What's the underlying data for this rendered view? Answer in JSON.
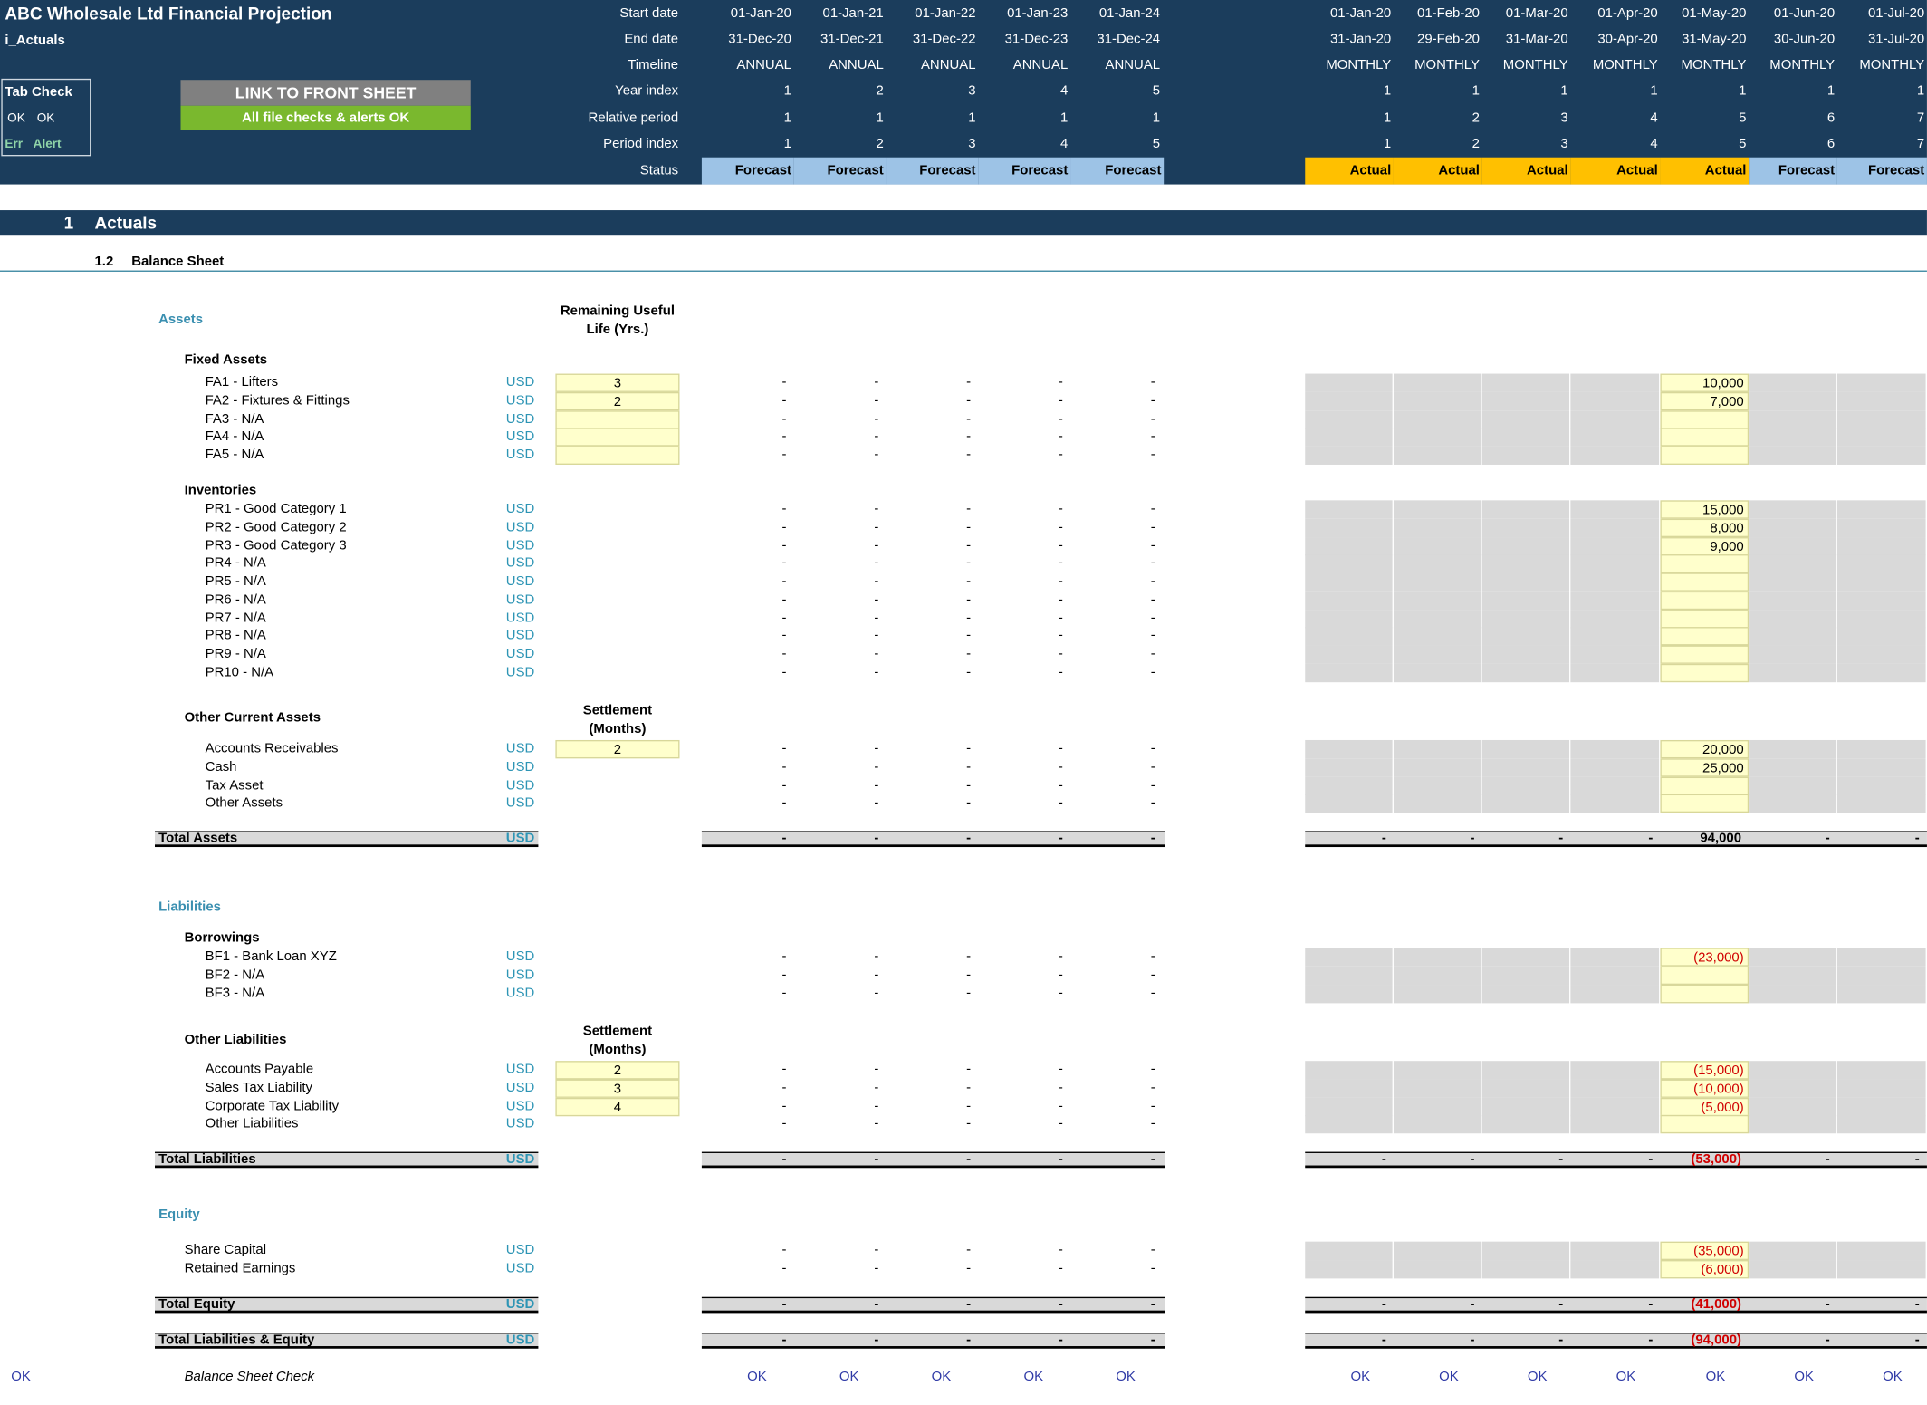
{
  "header": {
    "title": "ABC Wholesale Ltd Financial Projection",
    "sheet_name": "i_Actuals",
    "tab_check": {
      "title": "Tab Check",
      "ok1": "OK",
      "ok2": "OK",
      "err": "Err",
      "alert": "Alert"
    },
    "link_button": "LINK TO FRONT SHEET",
    "checks_status": "All file checks & alerts OK",
    "row_labels": [
      "Start date",
      "End date",
      "Timeline",
      "Year index",
      "Relative period",
      "Period index",
      "Status"
    ],
    "annual": [
      {
        "start": "01-Jan-20",
        "end": "31-Dec-20",
        "timeline": "ANNUAL",
        "year": "1",
        "rel": "1",
        "period": "1",
        "status": "Forecast"
      },
      {
        "start": "01-Jan-21",
        "end": "31-Dec-21",
        "timeline": "ANNUAL",
        "year": "2",
        "rel": "1",
        "period": "2",
        "status": "Forecast"
      },
      {
        "start": "01-Jan-22",
        "end": "31-Dec-22",
        "timeline": "ANNUAL",
        "year": "3",
        "rel": "1",
        "period": "3",
        "status": "Forecast"
      },
      {
        "start": "01-Jan-23",
        "end": "31-Dec-23",
        "timeline": "ANNUAL",
        "year": "4",
        "rel": "1",
        "period": "4",
        "status": "Forecast"
      },
      {
        "start": "01-Jan-24",
        "end": "31-Dec-24",
        "timeline": "ANNUAL",
        "year": "5",
        "rel": "1",
        "period": "5",
        "status": "Forecast"
      }
    ],
    "monthly": [
      {
        "start": "01-Jan-20",
        "end": "31-Jan-20",
        "timeline": "MONTHLY",
        "year": "1",
        "rel": "1",
        "period": "1",
        "status": "Actual"
      },
      {
        "start": "01-Feb-20",
        "end": "29-Feb-20",
        "timeline": "MONTHLY",
        "year": "1",
        "rel": "2",
        "period": "2",
        "status": "Actual"
      },
      {
        "start": "01-Mar-20",
        "end": "31-Mar-20",
        "timeline": "MONTHLY",
        "year": "1",
        "rel": "3",
        "period": "3",
        "status": "Actual"
      },
      {
        "start": "01-Apr-20",
        "end": "30-Apr-20",
        "timeline": "MONTHLY",
        "year": "1",
        "rel": "4",
        "period": "4",
        "status": "Actual"
      },
      {
        "start": "01-May-20",
        "end": "31-May-20",
        "timeline": "MONTHLY",
        "year": "1",
        "rel": "5",
        "period": "5",
        "status": "Actual"
      },
      {
        "start": "01-Jun-20",
        "end": "30-Jun-20",
        "timeline": "MONTHLY",
        "year": "1",
        "rel": "6",
        "period": "6",
        "status": "Forecast"
      },
      {
        "start": "01-Jul-20",
        "end": "31-Jul-20",
        "timeline": "MONTHLY",
        "year": "1",
        "rel": "7",
        "period": "7",
        "status": "Forecast"
      }
    ]
  },
  "section": {
    "number": "1",
    "title": "Actuals",
    "sub_number": "1.2",
    "sub_title": "Balance Sheet"
  },
  "labels": {
    "assets": "Assets",
    "liabilities": "Liabilities",
    "equity": "Equity",
    "useful_life": "Remaining Useful Life (Yrs.)",
    "settlement": "Settlement (Months)",
    "fixed_assets": "Fixed Assets",
    "inventories": "Inventories",
    "other_current_assets": "Other Current Assets",
    "borrowings": "Borrowings",
    "other_liabilities": "Other Liabilities",
    "total_assets": "Total Assets",
    "total_liabilities": "Total Liabilities",
    "total_equity": "Total Equity",
    "total_le": "Total Liabilities & Equity",
    "bs_check": "Balance Sheet Check",
    "ok": "OK",
    "dash": "-",
    "usd": "USD"
  },
  "rows": {
    "fixed_assets": [
      {
        "name": "FA1 - Lifters",
        "life": "3",
        "may": "10,000"
      },
      {
        "name": "FA2 - Fixtures & Fittings",
        "life": "2",
        "may": "7,000"
      },
      {
        "name": "FA3 - N/A",
        "life": "",
        "may": ""
      },
      {
        "name": "FA4 - N/A",
        "life": "",
        "may": ""
      },
      {
        "name": "FA5 - N/A",
        "life": "",
        "may": ""
      }
    ],
    "inventories": [
      {
        "name": "PR1 - Good Category 1",
        "may": "15,000"
      },
      {
        "name": "PR2 - Good Category 2",
        "may": "8,000"
      },
      {
        "name": "PR3 - Good Category 3",
        "may": "9,000"
      },
      {
        "name": "PR4 - N/A",
        "may": ""
      },
      {
        "name": "PR5 - N/A",
        "may": ""
      },
      {
        "name": "PR6 - N/A",
        "may": ""
      },
      {
        "name": "PR7 - N/A",
        "may": ""
      },
      {
        "name": "PR8 - N/A",
        "may": ""
      },
      {
        "name": "PR9 - N/A",
        "may": ""
      },
      {
        "name": "PR10 - N/A",
        "may": ""
      }
    ],
    "other_current_assets": [
      {
        "name": "Accounts Receivables",
        "settle": "2",
        "may": "20,000"
      },
      {
        "name": "Cash",
        "may": "25,000"
      },
      {
        "name": "Tax Asset",
        "may": ""
      },
      {
        "name": "Other Assets",
        "may": ""
      }
    ],
    "borrowings": [
      {
        "name": "BF1 - Bank Loan XYZ",
        "may": "(23,000)"
      },
      {
        "name": "BF2 - N/A",
        "may": ""
      },
      {
        "name": "BF3 - N/A",
        "may": ""
      }
    ],
    "other_liabilities": [
      {
        "name": "Accounts Payable",
        "settle": "2",
        "may": "(15,000)"
      },
      {
        "name": "Sales Tax Liability",
        "settle": "3",
        "may": "(10,000)"
      },
      {
        "name": "Corporate Tax Liability",
        "settle": "4",
        "may": "(5,000)"
      },
      {
        "name": "Other Liabilities",
        "may": ""
      }
    ],
    "equity": [
      {
        "name": "Share Capital",
        "may": "(35,000)"
      },
      {
        "name": "Retained Earnings",
        "may": "(6,000)"
      }
    ]
  },
  "totals": {
    "assets_may": "94,000",
    "liabilities_may": "(53,000)",
    "equity_may": "(41,000)",
    "le_may": "(94,000)"
  }
}
